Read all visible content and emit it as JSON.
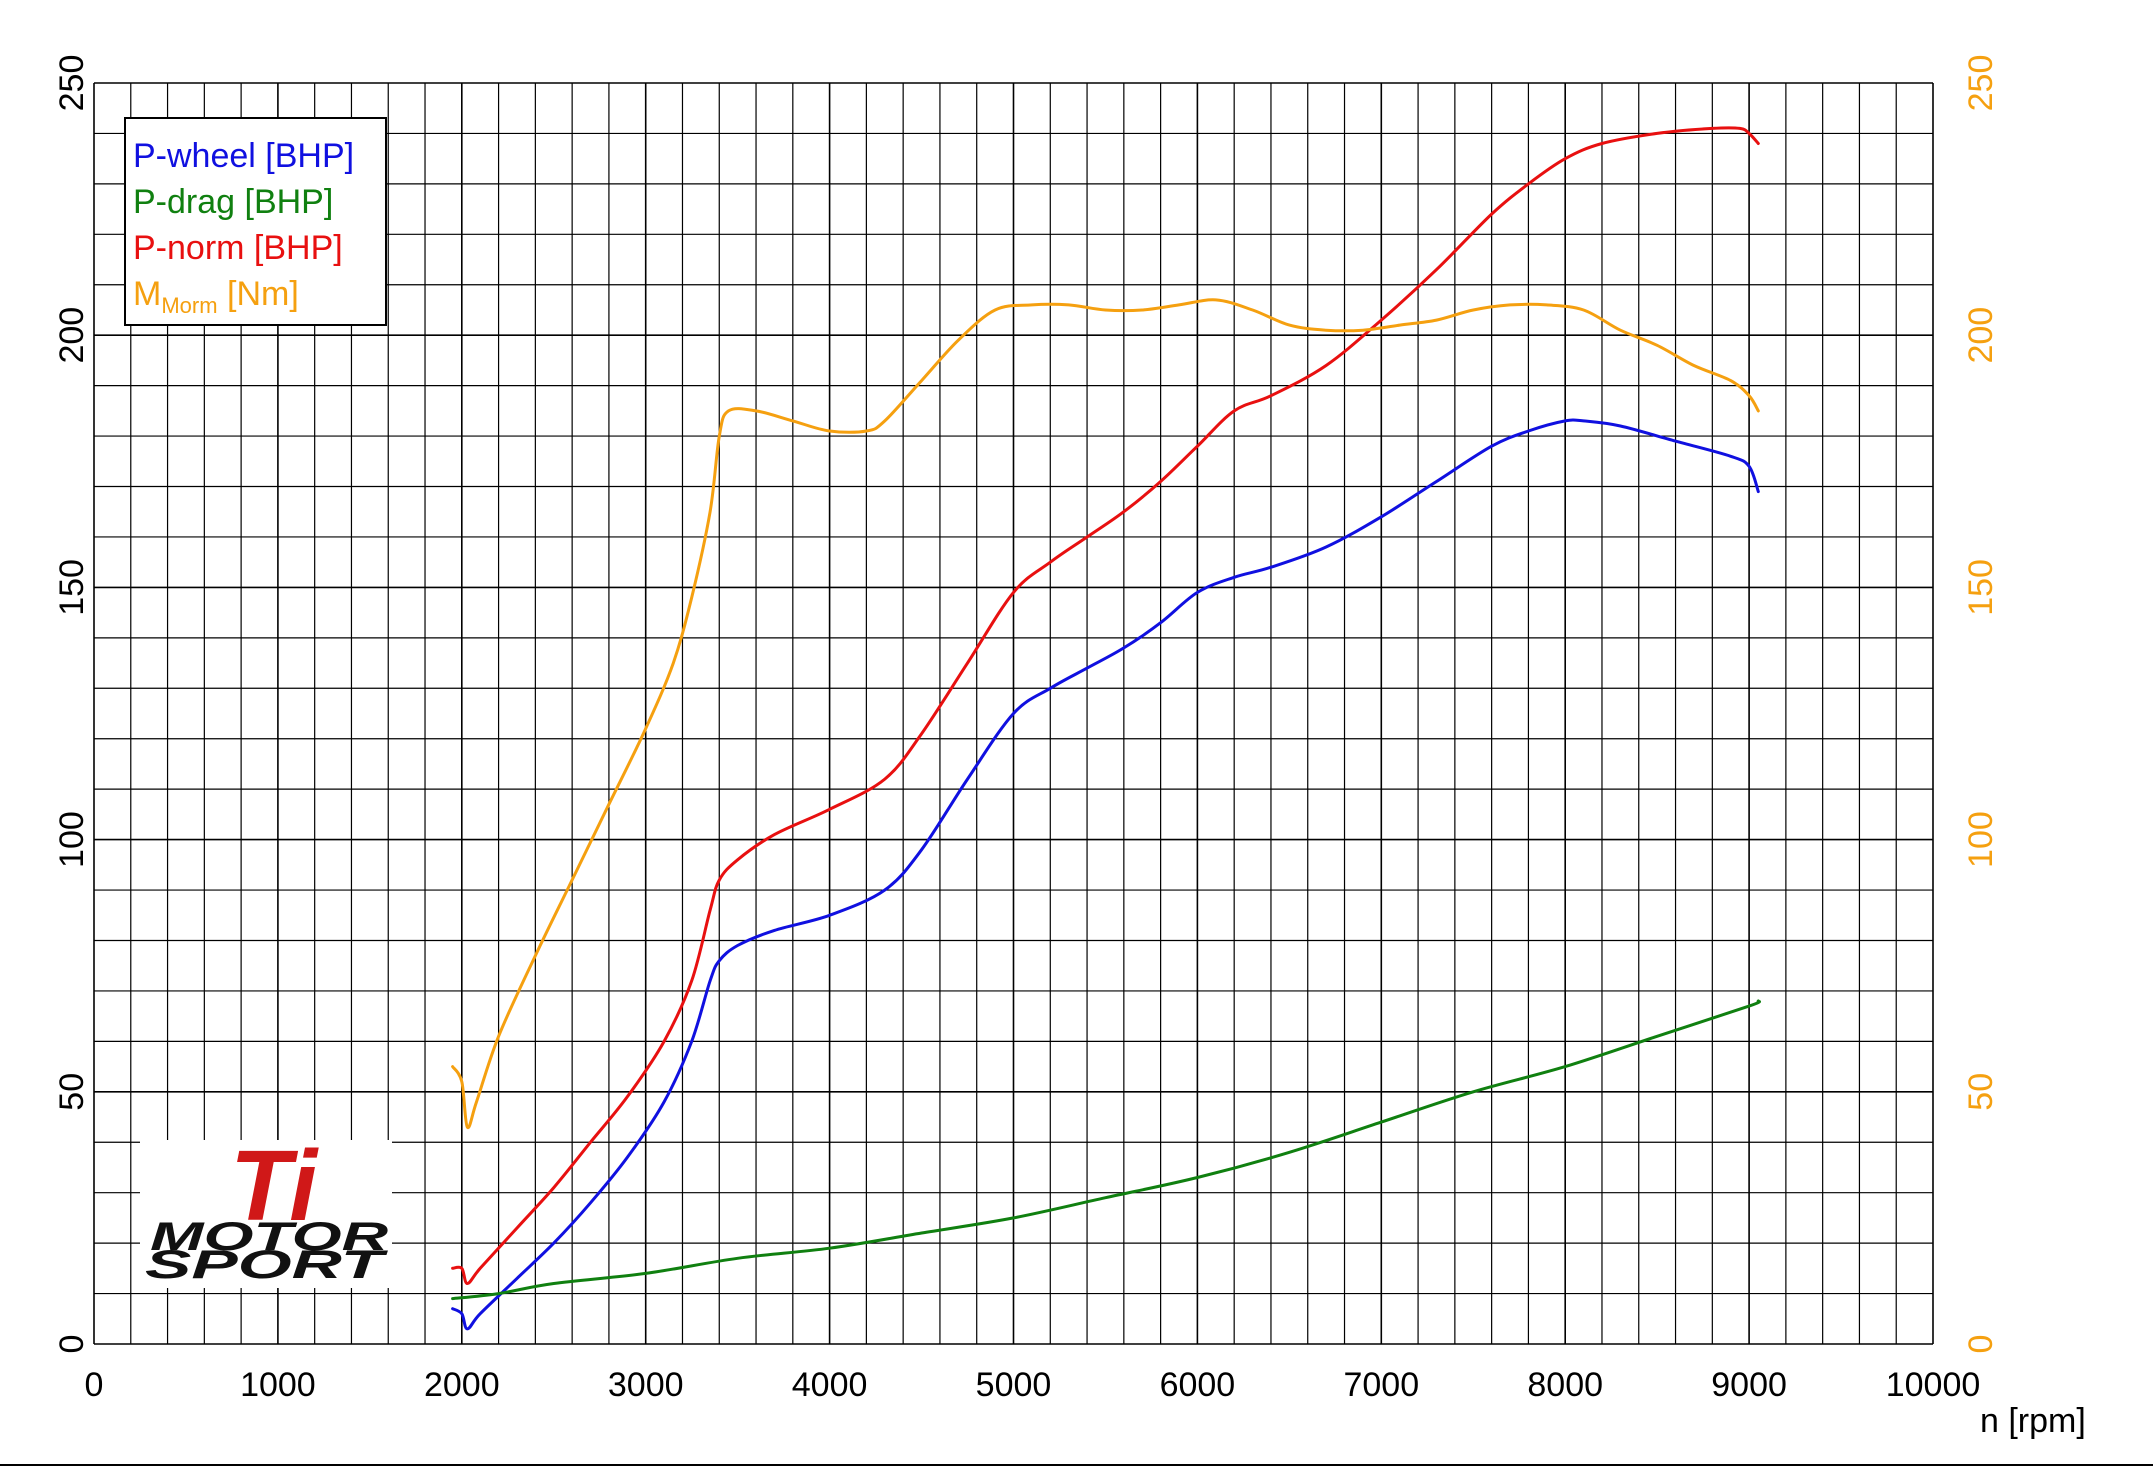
{
  "chart_data": {
    "type": "line",
    "xlabel": "n [rpm]",
    "xlim": [
      0,
      10000
    ],
    "ylim_left": [
      0,
      250
    ],
    "ylim_right": [
      0,
      250
    ],
    "grid": true,
    "legend_position": "top-left",
    "x_ticks": [
      "0",
      "1000",
      "2000",
      "3000",
      "4000",
      "5000",
      "6000",
      "7000",
      "8000",
      "9000",
      "10000"
    ],
    "y_ticks_left": [
      "0",
      "50",
      "100",
      "150",
      "200",
      "250"
    ],
    "y_ticks_right": [
      "0",
      "50",
      "100",
      "150",
      "200",
      "250"
    ],
    "series": [
      {
        "name": "P-wheel [BHP]",
        "color": "#1010e0",
        "x": [
          1950,
          2000,
          2030,
          2100,
          2300,
          2500,
          2700,
          2900,
          3100,
          3250,
          3350,
          3400,
          3500,
          3700,
          4000,
          4300,
          4500,
          4750,
          5000,
          5200,
          5400,
          5600,
          5800,
          6000,
          6200,
          6400,
          6700,
          7000,
          7300,
          7600,
          7800,
          8000,
          8100,
          8300,
          8600,
          8900,
          9000,
          9050
        ],
        "y": [
          7,
          6,
          3,
          6,
          13,
          20,
          28,
          37,
          48,
          60,
          72,
          76,
          79,
          82,
          85,
          90,
          98,
          112,
          125,
          130,
          134,
          138,
          143,
          149,
          152,
          154,
          158,
          164,
          171,
          178,
          181,
          183,
          183,
          182,
          179,
          176,
          174,
          169
        ]
      },
      {
        "name": "P-drag [BHP]",
        "color": "#108010",
        "x": [
          1950,
          2200,
          2500,
          3000,
          3500,
          4000,
          4500,
          5000,
          5500,
          6000,
          6500,
          7000,
          7500,
          8000,
          8500,
          9000,
          9050
        ],
        "y": [
          9,
          10,
          12,
          14,
          17,
          19,
          22,
          25,
          29,
          33,
          38,
          44,
          50,
          55,
          61,
          67,
          68
        ]
      },
      {
        "name": "P-norm [BHP]",
        "color": "#e81010",
        "x": [
          1950,
          2000,
          2030,
          2100,
          2300,
          2500,
          2700,
          2900,
          3100,
          3250,
          3350,
          3400,
          3500,
          3700,
          4000,
          4300,
          4500,
          4750,
          5000,
          5200,
          5400,
          5600,
          5800,
          6000,
          6200,
          6400,
          6700,
          7000,
          7300,
          7600,
          7800,
          8000,
          8200,
          8500,
          8800,
          8950,
          9000,
          9050
        ],
        "y": [
          15,
          15,
          12,
          15,
          23,
          31,
          40,
          49,
          60,
          72,
          86,
          92,
          96,
          101,
          106,
          112,
          121,
          135,
          149,
          155,
          160,
          165,
          171,
          178,
          185,
          188,
          194,
          203,
          213,
          224,
          230,
          235,
          238,
          240,
          241,
          241,
          240,
          238
        ]
      },
      {
        "name_main": "M",
        "name_sub": "Morm",
        "name_suffix": " [Nm]",
        "color": "#f5a010",
        "axis": "right",
        "x": [
          1950,
          2000,
          2030,
          2080,
          2200,
          2400,
          2600,
          2800,
          3000,
          3150,
          3250,
          3350,
          3400,
          3450,
          3600,
          3800,
          4000,
          4200,
          4300,
          4500,
          4700,
          4900,
          5100,
          5300,
          5500,
          5700,
          5900,
          6100,
          6300,
          6500,
          6700,
          6900,
          7100,
          7300,
          7500,
          7700,
          7900,
          8100,
          8300,
          8500,
          8700,
          8900,
          9000,
          9050
        ],
        "y": [
          55,
          52,
          43,
          48,
          61,
          77,
          92,
          107,
          122,
          135,
          148,
          165,
          180,
          185,
          185,
          183,
          181,
          181,
          183,
          191,
          199,
          205,
          206,
          206,
          205,
          205,
          206,
          207,
          205,
          202,
          201,
          201,
          202,
          203,
          205,
          206,
          206,
          205,
          201,
          198,
          194,
          191,
          188,
          185
        ]
      }
    ]
  },
  "logo": {
    "mark": "Ti",
    "line1": "MOTOR",
    "line2": "SPORT"
  },
  "colors": {
    "blue": "#1010e0",
    "green": "#108010",
    "red": "#e81010",
    "orange": "#f5a010",
    "grid": "#000000"
  }
}
